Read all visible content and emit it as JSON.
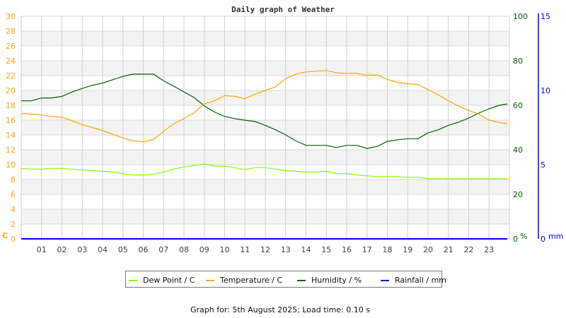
{
  "chart_data": {
    "type": "line",
    "title": "Daily graph of Weather",
    "footer": "Graph for: 5th August 2025; Load time: 0.10 s",
    "x_ticks": [
      "01",
      "02",
      "03",
      "04",
      "05",
      "06",
      "07",
      "08",
      "09",
      "10",
      "11",
      "12",
      "13",
      "14",
      "15",
      "16",
      "17",
      "18",
      "19",
      "20",
      "21",
      "22",
      "23"
    ],
    "xlim": [
      0,
      24
    ],
    "grid": true,
    "legend_position": "bottom",
    "axes": {
      "left": {
        "unit": "C",
        "ylim": [
          0,
          30
        ],
        "ticks": [
          0,
          2,
          4,
          6,
          8,
          10,
          12,
          14,
          16,
          18,
          20,
          22,
          24,
          26,
          28,
          30
        ],
        "color": "#ffa500"
      },
      "right_humidity": {
        "unit": "%",
        "ylim": [
          0,
          100
        ],
        "ticks": [
          0,
          20,
          40,
          60,
          80,
          100
        ],
        "color": "#006400"
      },
      "right_rain": {
        "unit": "mm",
        "ylim": [
          0,
          15
        ],
        "ticks": [
          0,
          5,
          10,
          15
        ],
        "color": "#0000ff"
      }
    },
    "x": [
      0,
      0.5,
      1,
      1.5,
      2,
      2.5,
      3,
      3.5,
      4,
      4.5,
      5,
      5.5,
      6,
      6.5,
      7,
      7.5,
      8,
      8.5,
      9,
      9.5,
      10,
      10.5,
      11,
      11.5,
      12,
      12.5,
      13,
      13.5,
      14,
      14.5,
      15,
      15.5,
      16,
      16.5,
      17,
      17.5,
      18,
      18.5,
      19,
      19.5,
      20,
      20.5,
      21,
      21.5,
      22,
      22.5,
      23,
      23.5,
      23.9
    ],
    "series": [
      {
        "name": "Dew Point / C",
        "axis": "left",
        "color": "#80ff00",
        "values": [
          9.5,
          9.4,
          9.4,
          9.5,
          9.5,
          9.4,
          9.3,
          9.2,
          9.1,
          9.0,
          8.8,
          8.6,
          8.6,
          8.7,
          9.0,
          9.4,
          9.7,
          9.9,
          10.1,
          9.8,
          9.8,
          9.6,
          9.3,
          9.6,
          9.6,
          9.4,
          9.2,
          9.1,
          9.0,
          9.0,
          9.1,
          8.8,
          8.8,
          8.6,
          8.5,
          8.4,
          8.4,
          8.4,
          8.3,
          8.3,
          8.1,
          8.1,
          8.1,
          8.1,
          8.1,
          8.1,
          8.1,
          8.1,
          8.1
        ]
      },
      {
        "name": "Temperature / C",
        "axis": "left",
        "color": "#ffa500",
        "values": [
          16.9,
          16.8,
          16.7,
          16.5,
          16.4,
          15.9,
          15.4,
          15.0,
          14.6,
          14.1,
          13.6,
          13.2,
          13.1,
          13.4,
          14.5,
          15.5,
          16.2,
          17.0,
          18.2,
          18.6,
          19.3,
          19.2,
          18.9,
          19.5,
          20.0,
          20.5,
          21.6,
          22.2,
          22.5,
          22.6,
          22.7,
          22.4,
          22.3,
          22.3,
          22.0,
          22.1,
          21.5,
          21.1,
          20.9,
          20.8,
          20.1,
          19.4,
          18.6,
          17.9,
          17.3,
          16.8,
          16.0,
          15.7,
          15.5
        ]
      },
      {
        "name": "Humidity / %",
        "axis": "right_humidity",
        "color": "#006400",
        "values": [
          62,
          62,
          63.3,
          63.3,
          64,
          66,
          67.6,
          69,
          70,
          71.5,
          73,
          74,
          74,
          74,
          71,
          68.6,
          66,
          63.5,
          59.7,
          57,
          55,
          54,
          53.3,
          52.7,
          51,
          49,
          46.7,
          44,
          42,
          42,
          42,
          41,
          42,
          42,
          40.6,
          41.5,
          43.8,
          44.5,
          45,
          45,
          47.6,
          49,
          51,
          52.4,
          54.3,
          56.5,
          58.4,
          60,
          60.6
        ]
      },
      {
        "name": "Rainfall / mm",
        "axis": "right_rain",
        "color": "#0000ff",
        "values": [
          0,
          0,
          0,
          0,
          0,
          0,
          0,
          0,
          0,
          0,
          0,
          0,
          0,
          0,
          0,
          0,
          0,
          0,
          0,
          0,
          0,
          0,
          0,
          0,
          0,
          0,
          0,
          0,
          0,
          0,
          0,
          0,
          0,
          0,
          0,
          0,
          0,
          0,
          0,
          0,
          0,
          0,
          0,
          0,
          0,
          0,
          0,
          0,
          0
        ]
      }
    ]
  }
}
